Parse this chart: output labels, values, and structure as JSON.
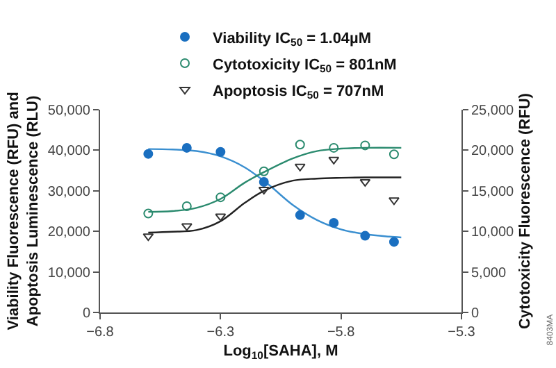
{
  "chart_data": {
    "type": "scatter",
    "xlabel": "Log$_{10}$[SAHA], M",
    "ylabel": "Viability Fluorescence (RFU) and Apoptosis Luminescence (RLU)",
    "y2label": "Cytotoxicity Fluorescence (RFU)",
    "xlim": [
      -6.8,
      -5.3
    ],
    "xticks": [
      {
        "value": -6.8,
        "label": "−6.8"
      },
      {
        "value": -6.3,
        "label": "−6.3"
      },
      {
        "value": -5.8,
        "label": "−5.8"
      },
      {
        "value": -5.3,
        "label": "−5.3"
      }
    ],
    "ylim": [
      0,
      50000
    ],
    "yticks": [
      {
        "value": 0,
        "label": "0"
      },
      {
        "value": 10000,
        "label": "10,000"
      },
      {
        "value": 20000,
        "label": "20,000"
      },
      {
        "value": 30000,
        "label": "30,000"
      },
      {
        "value": 40000,
        "label": "40,000"
      },
      {
        "value": 50000,
        "label": "50,000"
      }
    ],
    "y2lim": [
      0,
      25000
    ],
    "y2ticks": [
      {
        "value": 0,
        "label": "0"
      },
      {
        "value": 5000,
        "label": "5,000"
      },
      {
        "value": 10000,
        "label": "10,000"
      },
      {
        "value": 15000,
        "label": "15,000"
      },
      {
        "value": 20000,
        "label": "20,000"
      },
      {
        "value": 25000,
        "label": "25,000"
      }
    ],
    "grid": false,
    "legend": "top",
    "annotations": [
      "8403MA"
    ],
    "series": [
      {
        "type": "line",
        "color": "#3a8fd0",
        "marker": "none",
        "x": [
          -6.6,
          -6.5,
          -6.4,
          -6.3,
          -6.2,
          -6.1,
          -6.0,
          -5.9,
          -5.8,
          -5.7,
          -5.6,
          -5.55
        ],
        "values": [
          40300,
          40200,
          39800,
          38500,
          35800,
          31500,
          26500,
          22800,
          20500,
          19300,
          18700,
          18500
        ]
      },
      {
        "type": "line",
        "color": "#2a8a6e",
        "marker": "none",
        "axis": "y2",
        "x": [
          -6.6,
          -6.5,
          -6.4,
          -6.3,
          -6.2,
          -6.12,
          -6.0,
          -5.9,
          -5.8,
          -5.7,
          -5.55
        ],
        "values": [
          12400,
          12500,
          12900,
          14000,
          16000,
          17300,
          19000,
          19900,
          20200,
          20300,
          20300
        ]
      },
      {
        "type": "line",
        "color": "#222222",
        "marker": "none",
        "x": [
          -6.6,
          -6.5,
          -6.4,
          -6.3,
          -6.2,
          -6.12,
          -6.0,
          -5.9,
          -5.8,
          -5.7,
          -5.55
        ],
        "values": [
          19700,
          19900,
          20300,
          22500,
          27000,
          30000,
          32500,
          33000,
          33200,
          33300,
          33300
        ]
      },
      {
        "name": "Viability IC$_{50}$ = 1.04µM",
        "color": "#1a6fc0",
        "marker": "circle",
        "x": [
          -6.6,
          -6.44,
          -6.3,
          -6.12,
          -5.97,
          -5.83,
          -5.7,
          -5.58
        ],
        "values": [
          39100,
          40600,
          39600,
          32200,
          24000,
          22100,
          18900,
          17400
        ]
      },
      {
        "name": "Cytotoxicity IC$_{50}$ = 801nM",
        "color": "#2a8a6e",
        "marker": "circle-open",
        "axis": "y2",
        "x": [
          -6.6,
          -6.44,
          -6.3,
          -6.12,
          -5.97,
          -5.83,
          -5.7,
          -5.58
        ],
        "values": [
          12200,
          13100,
          14200,
          17400,
          20700,
          20300,
          20600,
          19500
        ]
      },
      {
        "name": "Apoptosis IC$_{50}$ = 707nM",
        "color": "#333333",
        "marker": "triangle-down-open",
        "x": [
          -6.6,
          -6.44,
          -6.3,
          -6.12,
          -5.97,
          -5.83,
          -5.7,
          -5.58
        ],
        "values": [
          18800,
          21300,
          23700,
          30300,
          36000,
          37700,
          32200,
          27700
        ]
      }
    ]
  }
}
